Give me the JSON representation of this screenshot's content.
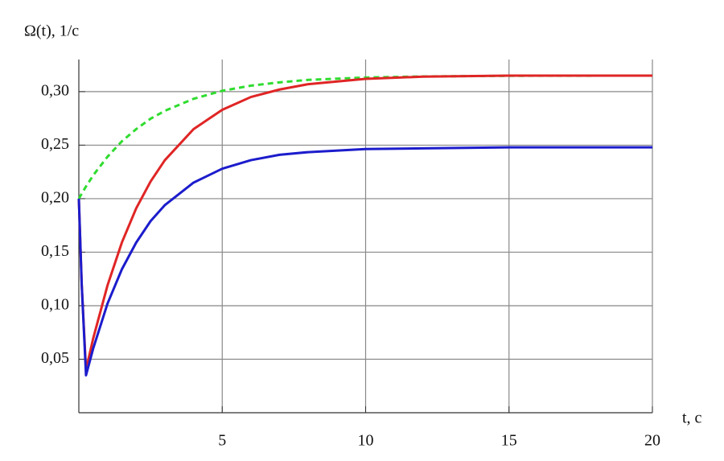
{
  "chart_data": {
    "type": "line",
    "y_label": "Ω(t), 1/c",
    "x_label": "t, c",
    "x": [
      0,
      0.1,
      0.25,
      0.5,
      1,
      1.5,
      2,
      2.5,
      3,
      4,
      5,
      6,
      7,
      8,
      10,
      12,
      15,
      20
    ],
    "series": [
      {
        "color": "#2fdc2f",
        "dashed": true,
        "values": [
          0.2,
          0.2047,
          0.2114,
          0.2218,
          0.2392,
          0.2536,
          0.265,
          0.2747,
          0.2821,
          0.2933,
          0.3008,
          0.3056,
          0.3087,
          0.311,
          0.3132,
          0.3142,
          0.3148,
          0.315
        ]
      },
      {
        "color": "#e02525",
        "dashed": false,
        "values": [
          0.2,
          0.12,
          0.04,
          0.0694,
          0.119,
          0.159,
          0.191,
          0.216,
          0.236,
          0.265,
          0.283,
          0.295,
          0.302,
          0.307,
          0.312,
          0.314,
          0.315,
          0.315
        ]
      },
      {
        "color": "#1c1ccc",
        "dashed": false,
        "values": [
          0.2,
          0.12,
          0.035,
          0.06,
          0.102,
          0.134,
          0.159,
          0.179,
          0.194,
          0.215,
          0.228,
          0.236,
          0.241,
          0.2435,
          0.2464,
          0.247,
          0.248,
          0.248
        ]
      }
    ],
    "xlim": [
      0,
      20
    ],
    "ylim": [
      0,
      0.33
    ],
    "xticks": [
      5,
      10,
      15,
      20
    ],
    "yticks": [
      {
        "value": 0.05,
        "label": "0,05"
      },
      {
        "value": 0.1,
        "label": "0,10"
      },
      {
        "value": 0.15,
        "label": "0,15"
      },
      {
        "value": 0.2,
        "label": "0,20"
      },
      {
        "value": 0.25,
        "label": "0,25"
      },
      {
        "value": 0.3,
        "label": "0,30"
      }
    ],
    "grid": true
  }
}
